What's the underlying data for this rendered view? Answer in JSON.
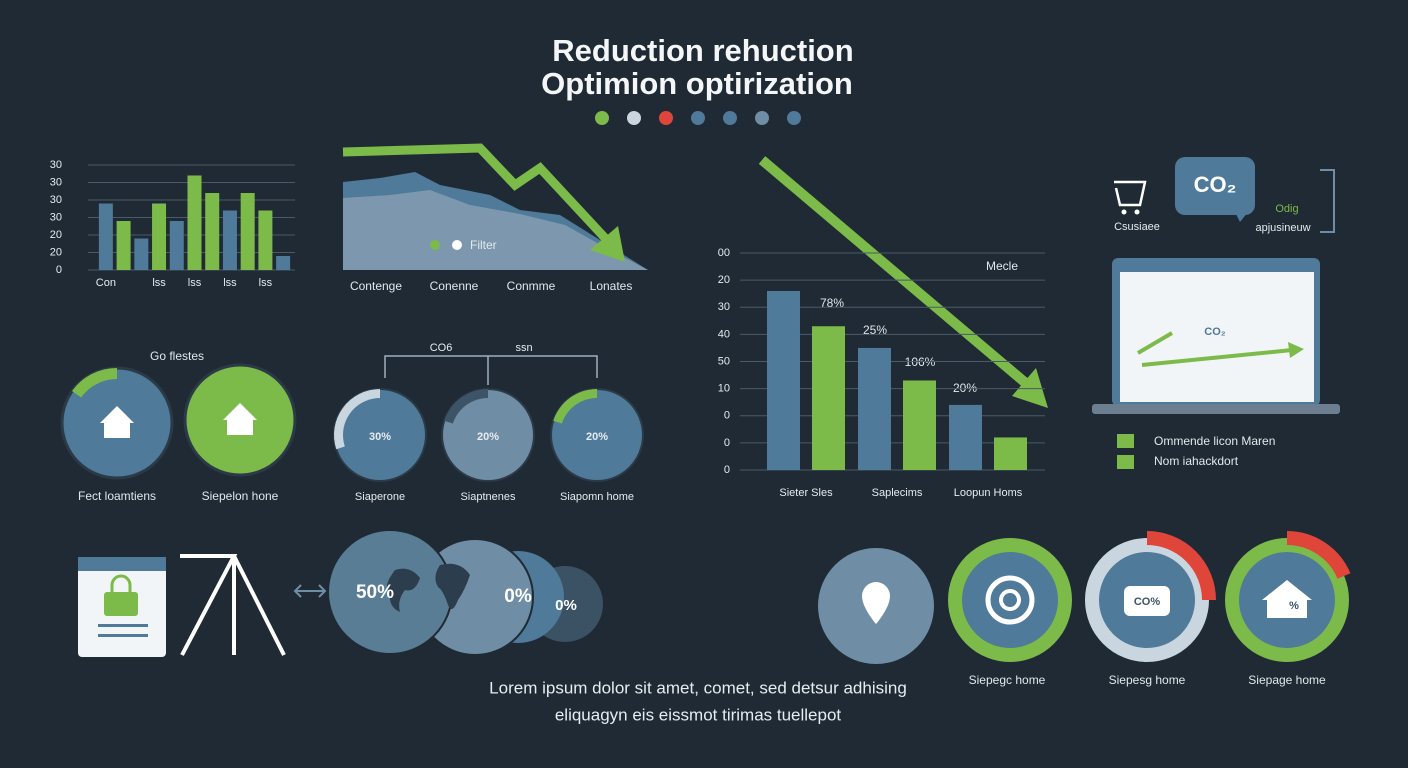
{
  "header": {
    "title": "Reduction rehuction",
    "subtitle": "Optimion optirization"
  },
  "bar_chart": {
    "type": "bar",
    "ylim": [
      0,
      30
    ],
    "yticks": [
      0,
      {
        "value": 5,
        "label": "20"
      },
      {
        "value": 10,
        "label": "20"
      },
      {
        "value": 15,
        "label": "30"
      },
      {
        "value": 20,
        "label": "30"
      },
      {
        "value": 25,
        "label": "30"
      },
      30
    ],
    "categories": [
      "Con",
      null,
      null,
      "lss",
      null,
      "lss",
      null,
      "lss",
      null,
      "lss",
      null
    ],
    "values": [
      19,
      14,
      9,
      19,
      14,
      27,
      22,
      17,
      22,
      17,
      4
    ],
    "colors": [
      "#4f7a99",
      "#7cba4a",
      "#4f7a99",
      "#7cba4a",
      "#4f7a99",
      "#7cba4a",
      "#7cba4a",
      "#4f7a99",
      "#7cba4a",
      "#7cba4a",
      "#4f7a99"
    ]
  },
  "area_chart": {
    "legend": "Filter",
    "categories": [
      "Contenge",
      "Conenne",
      "Conmme",
      "Lonates"
    ]
  },
  "house_circles": {
    "heading": "Go flestes",
    "labels": [
      "Fect loamtiens",
      "Siepelon hone"
    ]
  },
  "pies": {
    "bracket_labels": [
      "CO6",
      "ssn"
    ],
    "values": [
      30,
      20,
      20
    ],
    "value_labels": [
      "30%",
      "20%",
      "20%"
    ],
    "colors": [
      "#c9d5df",
      "#3d5468",
      "#7cba4a"
    ],
    "labels": [
      "Siaperone",
      "Siaptnenes",
      "Siapomn home"
    ]
  },
  "main_bar_chart": {
    "type": "bar",
    "ylim": [
      0,
      80
    ],
    "yticks": [
      0,
      {
        "value": 10,
        "label": "0"
      },
      {
        "value": 20,
        "label": "0"
      },
      {
        "value": 30,
        "label": "10"
      },
      {
        "value": 40,
        "label": "50"
      },
      {
        "value": 50,
        "label": "40"
      },
      {
        "value": 60,
        "label": "30"
      },
      {
        "value": 70,
        "label": "20"
      },
      {
        "value": 80,
        "label": "00"
      }
    ],
    "categories": [
      "Sieter Sles",
      "Saplecims",
      "Loopun Homs"
    ],
    "series": [
      {
        "color": "#4f7a99",
        "values": [
          66,
          45,
          24
        ]
      },
      {
        "color": "#7cba4a",
        "values": [
          53,
          33,
          12
        ]
      }
    ],
    "annotation": "Mecle",
    "callouts": [
      "78%",
      "25%",
      "106%",
      "20%"
    ]
  },
  "co2_panel": {
    "bubble": "CO₂",
    "side_label": "Odig",
    "cart_caption": "Csusiaee",
    "side_caption": "apjusineuw",
    "laptop": "CO₂",
    "legend": [
      "Ommende licon Maren",
      "Nom iahackdort"
    ]
  },
  "globes": {
    "labels": [
      "50%",
      "0%",
      "0%"
    ]
  },
  "rings": {
    "icon_labels": [
      "CO%",
      "%"
    ],
    "labels": [
      "Siepegc home",
      "Siepesg home",
      "Siepage home"
    ]
  },
  "footer": {
    "lines": [
      "Lorem ipsum dolor sit amet, comet, sed detsur adhising",
      "eliquagyn eis eissmot tirimas tuellepot"
    ]
  }
}
